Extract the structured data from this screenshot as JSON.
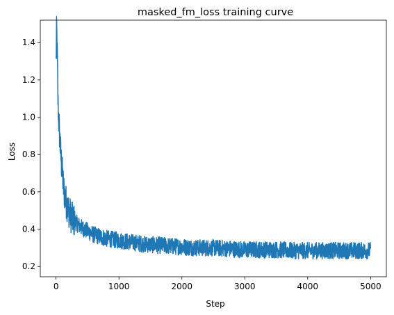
{
  "chart_data": {
    "type": "line",
    "title": "masked_fm_loss training curve",
    "xlabel": "Step",
    "ylabel": "Loss",
    "xlim": [
      -250,
      5250
    ],
    "ylim": [
      0.145,
      1.52
    ],
    "xticks": [
      0,
      1000,
      2000,
      3000,
      4000,
      5000
    ],
    "yticks": [
      0.2,
      0.4,
      0.6,
      0.8,
      1.0,
      1.2,
      1.4
    ],
    "xtick_labels": [
      "0",
      "1000",
      "2000",
      "3000",
      "4000",
      "5000"
    ],
    "ytick_labels": [
      "0.2",
      "0.4",
      "0.6",
      "0.8",
      "1.0",
      "1.2",
      "1.4"
    ],
    "grid": false,
    "series": [
      {
        "color": "#1f77b4",
        "x": [
          0,
          10,
          20,
          30,
          40,
          50,
          60,
          80,
          100,
          120,
          150,
          200,
          250,
          300,
          400,
          500,
          600,
          700,
          800,
          1000,
          1200,
          1400,
          1600,
          1800,
          2000,
          2250,
          2500,
          2750,
          3000,
          3250,
          3500,
          3750,
          4000,
          4250,
          4500,
          4750,
          5000
        ],
        "y": [
          1.3,
          1.48,
          1.32,
          1.1,
          1.0,
          0.95,
          0.88,
          0.78,
          0.7,
          0.62,
          0.56,
          0.5,
          0.46,
          0.44,
          0.41,
          0.39,
          0.37,
          0.36,
          0.35,
          0.34,
          0.33,
          0.32,
          0.315,
          0.31,
          0.305,
          0.3,
          0.3,
          0.295,
          0.29,
          0.29,
          0.29,
          0.285,
          0.285,
          0.285,
          0.285,
          0.285,
          0.285
        ],
        "noise_amplitude": 0.045
      }
    ]
  }
}
